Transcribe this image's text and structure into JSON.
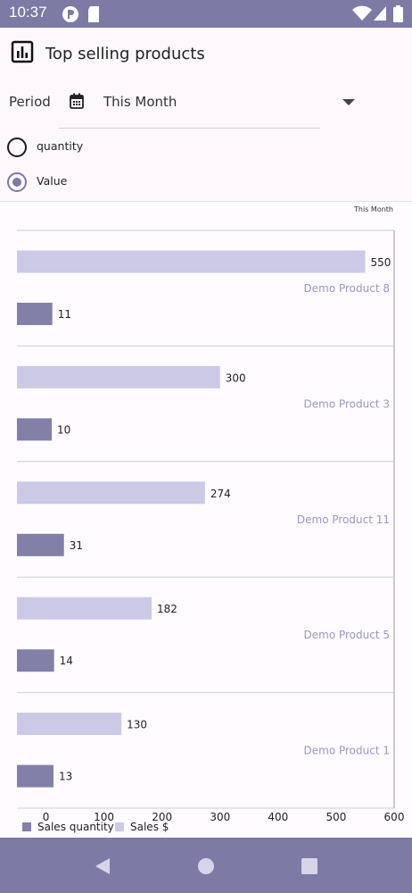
{
  "status_bar": {
    "time": "10:37"
  },
  "header": {
    "title": "Top selling products"
  },
  "period": {
    "label": "Period",
    "value": "This Month"
  },
  "options": [
    {
      "label": "quantity",
      "selected": false
    },
    {
      "label": "Value",
      "selected": true
    }
  ],
  "colors": {
    "accent": "#7d7aa6",
    "quantity_bar": "#8280a8",
    "sales_bar": "#cbc9e6"
  },
  "chart_data": {
    "type": "bar",
    "orientation": "horizontal",
    "title": "This Month",
    "categories": [
      "Demo Product 8",
      "Demo Product 3",
      "Demo Product 11",
      "Demo Product 5",
      "Demo Product 1"
    ],
    "series": [
      {
        "name": "Sales $",
        "values": [
          550,
          300,
          274,
          182,
          130
        ]
      },
      {
        "name": "Sales quantity",
        "values": [
          11,
          10,
          31,
          14,
          13
        ]
      }
    ],
    "x_ticks": [
      "0",
      "100",
      "200",
      "300",
      "400",
      "500",
      "600"
    ],
    "xlim": [
      -50,
      600
    ],
    "legend_position": "bottom-left",
    "grid": true
  }
}
